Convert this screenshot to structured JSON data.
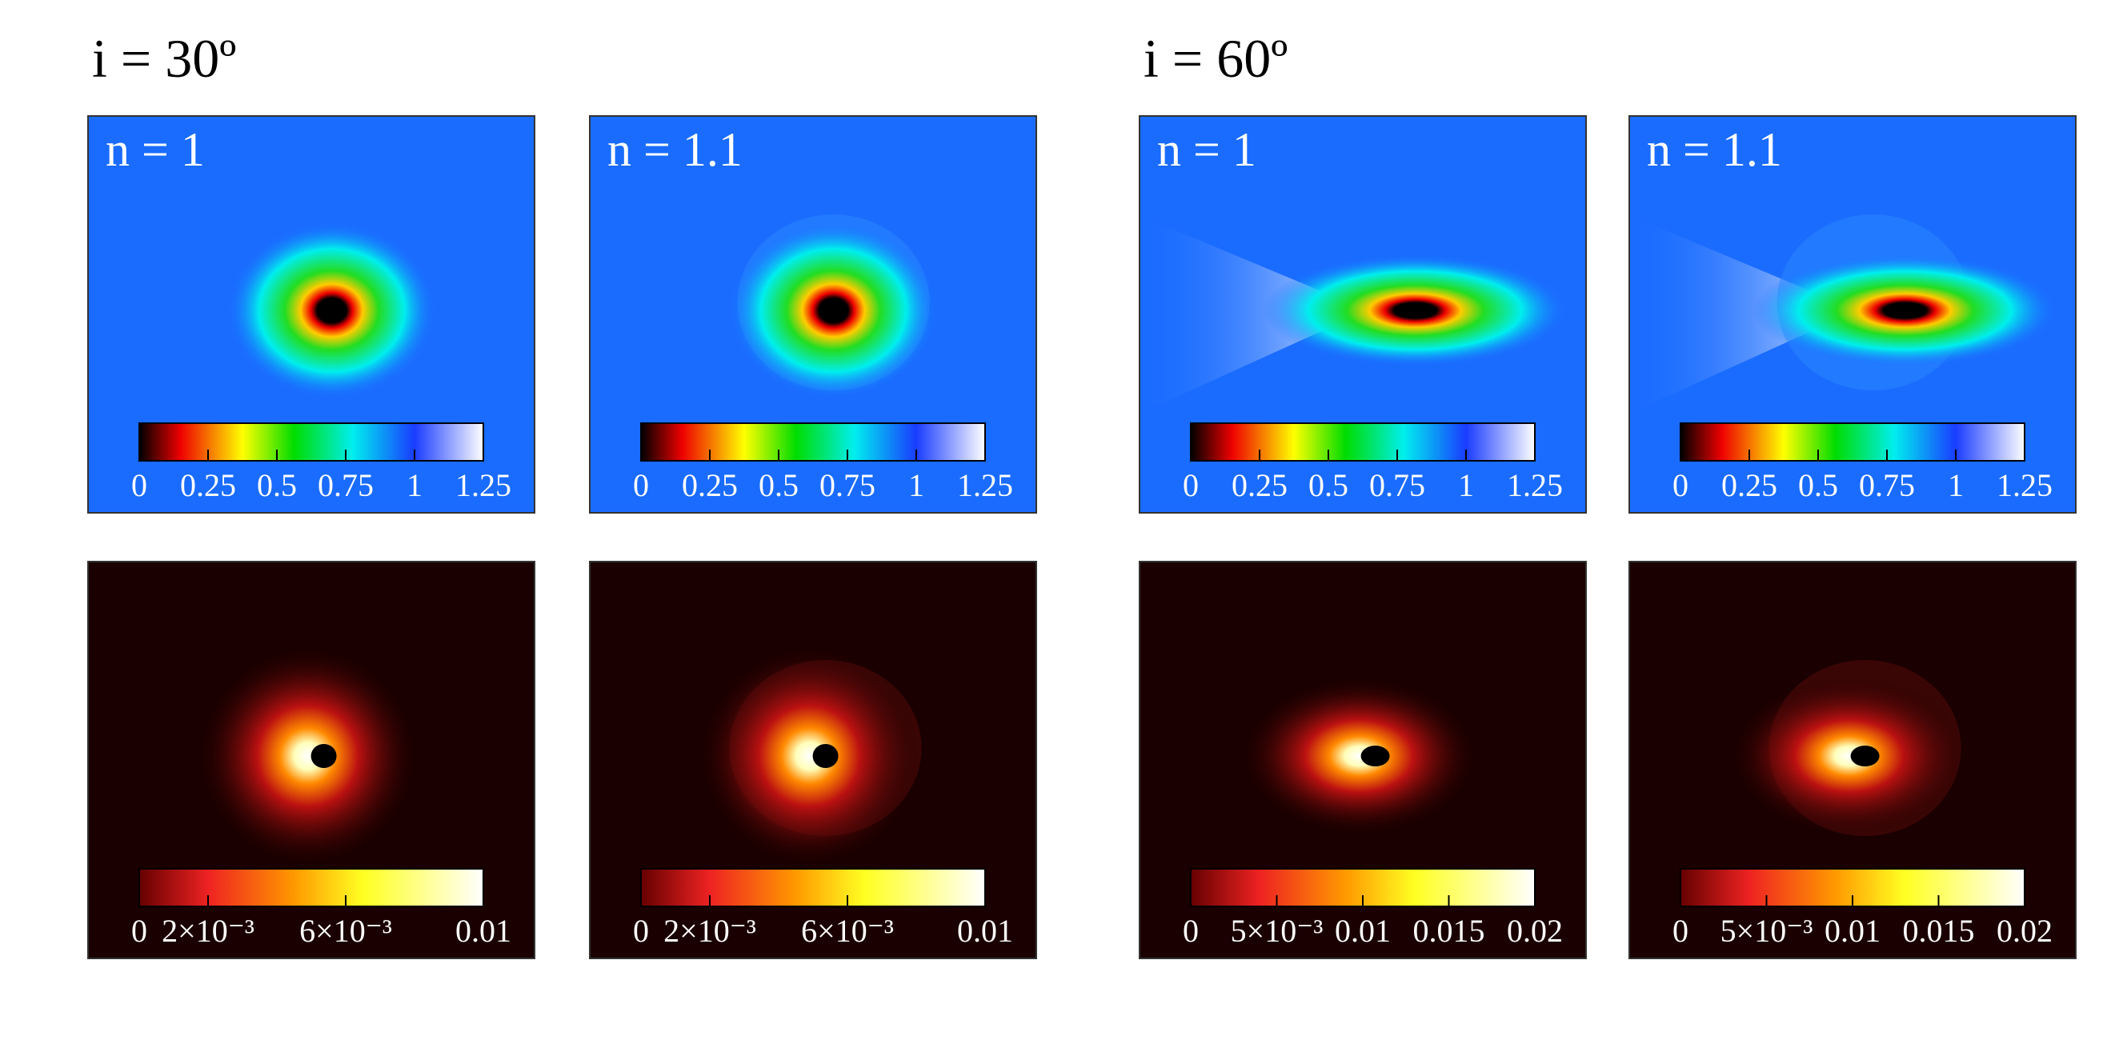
{
  "groups": [
    {
      "title": "i = 30º",
      "panels": [
        {
          "label": "n = 1",
          "colorbar": {
            "lim": [
              0,
              1.25
            ],
            "ticks": [
              0,
              0.25,
              0.5,
              0.75,
              1,
              1.25
            ]
          }
        },
        {
          "label": "n = 1.1",
          "colorbar": {
            "lim": [
              0,
              1.25
            ],
            "ticks": [
              0,
              0.25,
              0.5,
              0.75,
              1,
              1.25
            ]
          }
        },
        {
          "colorbar": {
            "lim": [
              0,
              0.01
            ],
            "ticks": [
              0,
              {
                "value": 0.002,
                "label": "2×10⁻³"
              },
              {
                "value": 0.006,
                "label": "6×10⁻³"
              },
              0.01
            ]
          }
        },
        {
          "colorbar": {
            "lim": [
              0,
              0.01
            ],
            "ticks": [
              0,
              {
                "value": 0.002,
                "label": "2×10⁻³"
              },
              {
                "value": 0.006,
                "label": "6×10⁻³"
              },
              0.01
            ]
          }
        }
      ]
    },
    {
      "title": "i = 60º",
      "panels": [
        {
          "label": "n = 1",
          "colorbar": {
            "lim": [
              0,
              1.25
            ],
            "ticks": [
              0,
              0.25,
              0.5,
              0.75,
              1,
              1.25
            ]
          }
        },
        {
          "label": "n = 1.1",
          "colorbar": {
            "lim": [
              0,
              1.25
            ],
            "ticks": [
              0,
              0.25,
              0.5,
              0.75,
              1,
              1.25
            ]
          }
        },
        {
          "colorbar": {
            "lim": [
              0,
              0.02
            ],
            "ticks": [
              0,
              {
                "value": 0.005,
                "label": "5×10⁻³"
              },
              0.01,
              0.015,
              0.02
            ]
          }
        },
        {
          "colorbar": {
            "lim": [
              0,
              0.02
            ],
            "ticks": [
              0,
              {
                "value": 0.005,
                "label": "5×10⁻³"
              },
              0.01,
              0.015,
              0.02
            ]
          }
        }
      ]
    }
  ]
}
